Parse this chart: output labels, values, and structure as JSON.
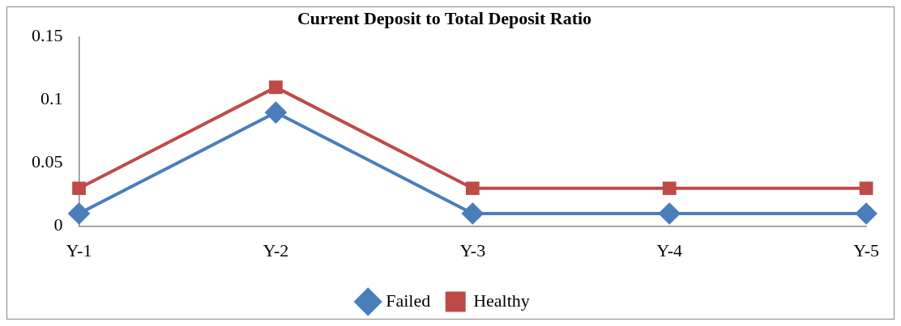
{
  "chart_data": {
    "type": "line",
    "title": "Current Deposit to Total Deposit Ratio",
    "categories": [
      "Y-1",
      "Y-2",
      "Y-3",
      "Y-4",
      "Y-5"
    ],
    "series": [
      {
        "name": "Failed",
        "color": "#4a7ebb",
        "values": [
          0.01,
          0.09,
          0.01,
          0.01,
          0.01
        ],
        "marker": "diamond"
      },
      {
        "name": "Healthy",
        "color": "#be4b48",
        "values": [
          0.03,
          0.11,
          0.03,
          0.03,
          0.03
        ],
        "marker": "square"
      }
    ],
    "ylim": [
      0,
      0.15
    ],
    "yticks": [
      0,
      0.05,
      0.1,
      0.15
    ],
    "grid": false,
    "legend": "bottom"
  }
}
